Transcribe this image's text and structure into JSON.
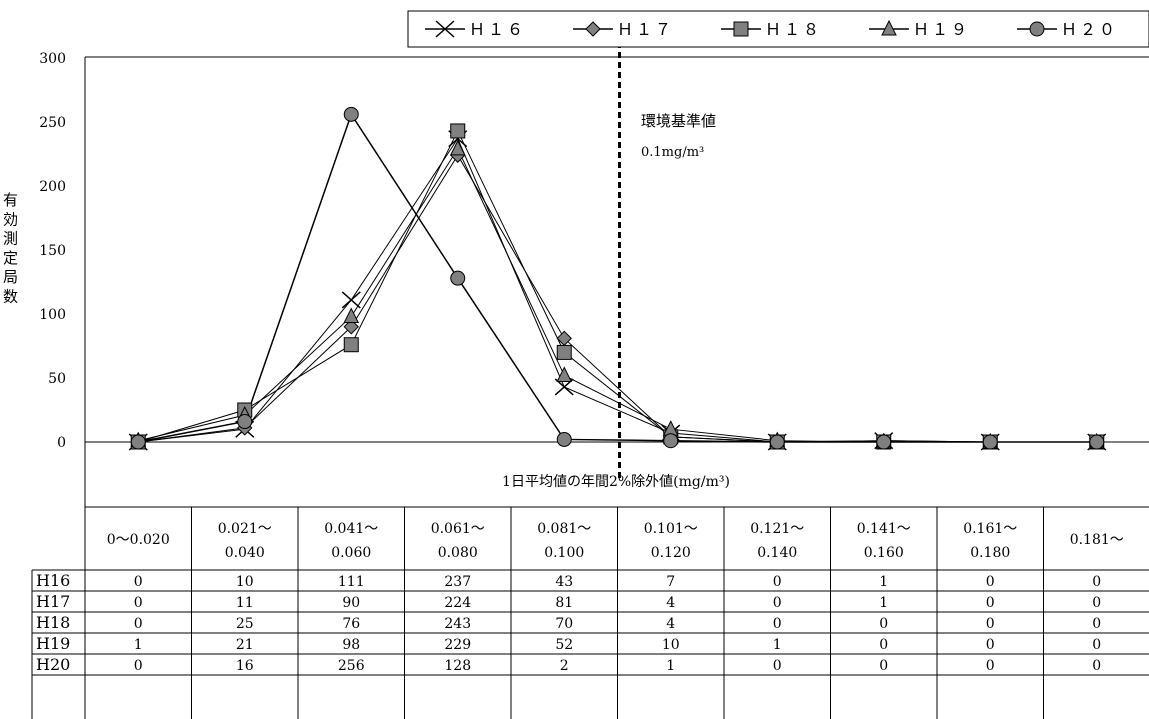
{
  "chart_data": {
    "type": "line",
    "categories": [
      "0〜0.020",
      "0.021〜\n0.040",
      "0.041〜\n0.060",
      "0.061〜\n0.080",
      "0.081〜\n0.100",
      "0.101〜\n0.120",
      "0.121〜\n0.140",
      "0.141〜\n0.160",
      "0.161〜\n0.180",
      "0.181〜"
    ],
    "series": [
      {
        "name": "H16",
        "legend": "Ｈ１６",
        "marker": "x",
        "values": [
          0,
          10,
          111,
          237,
          43,
          7,
          0,
          1,
          0,
          0
        ]
      },
      {
        "name": "H17",
        "legend": "Ｈ１７",
        "marker": "diamond",
        "values": [
          0,
          11,
          90,
          224,
          81,
          4,
          0,
          1,
          0,
          0
        ]
      },
      {
        "name": "H18",
        "legend": "Ｈ１８",
        "marker": "square",
        "values": [
          0,
          25,
          76,
          243,
          70,
          4,
          0,
          0,
          0,
          0
        ]
      },
      {
        "name": "H19",
        "legend": "Ｈ１９",
        "marker": "triangle",
        "values": [
          1,
          21,
          98,
          229,
          52,
          10,
          1,
          0,
          0,
          0
        ]
      },
      {
        "name": "H20",
        "legend": "Ｈ２０",
        "marker": "circle",
        "values": [
          0,
          16,
          256,
          128,
          2,
          1,
          0,
          0,
          0,
          0
        ]
      }
    ],
    "ylabel": "有効測定局数",
    "xlabel": "1日平均値の年間2%除外値(mg/m³)",
    "ylim": [
      0,
      300
    ],
    "yticks": [
      0,
      50,
      100,
      150,
      200,
      250,
      300
    ],
    "annotation": {
      "title": "環境基準値",
      "value": "0.1mg/m³"
    },
    "legend_position": "top-right",
    "grid": false,
    "marker_color": "#808080",
    "line_color": "#000000"
  }
}
